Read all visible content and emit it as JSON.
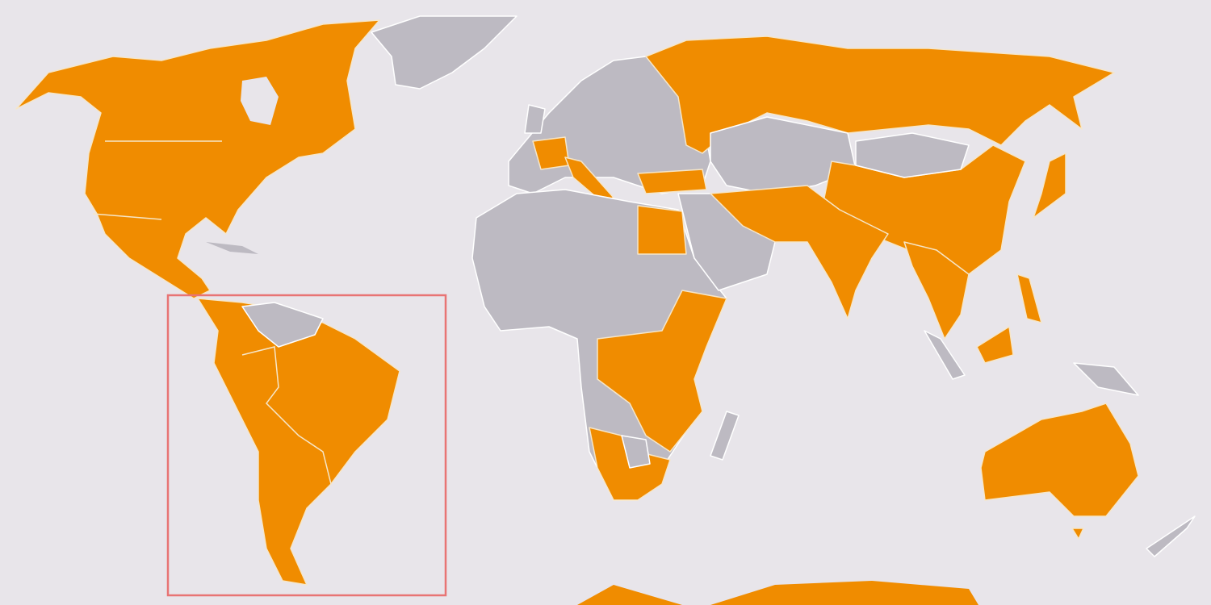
{
  "map": {
    "colors": {
      "background": "#e8e5ea",
      "highlighted": "#f08c00",
      "not_highlighted": "#bdbac2",
      "borders": "#f6e6c8",
      "focus_box": "#e87474"
    },
    "focus_region": "South America"
  }
}
